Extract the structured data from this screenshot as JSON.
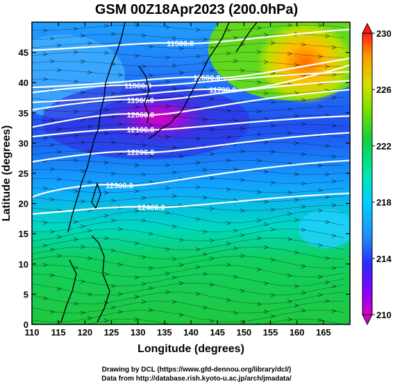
{
  "title": "GSM 00Z18Apr2023 (200.0hPa)",
  "xaxis": {
    "label": "Longitude (degrees)",
    "range": [
      110,
      170
    ],
    "ticks": [
      110,
      115,
      120,
      125,
      130,
      135,
      140,
      145,
      150,
      155,
      160,
      165
    ]
  },
  "yaxis": {
    "label": "Latitude  (degrees)",
    "range": [
      0,
      50
    ],
    "ticks": [
      0,
      5,
      10,
      15,
      20,
      25,
      30,
      35,
      40,
      45
    ]
  },
  "colorbar": {
    "min": 210,
    "max": 230,
    "labels": [
      210,
      214,
      218,
      222,
      226,
      230
    ]
  },
  "contours": [
    {
      "label": "11500.0",
      "lon": 138,
      "lat": 46.5
    },
    {
      "label": "11600.0",
      "lon": 143,
      "lat": 40.8
    },
    {
      "label": "11700.0",
      "lon": 146,
      "lat": 38.8
    },
    {
      "label": "11800.0",
      "lon": 130,
      "lat": 39.5
    },
    {
      "label": "11900.0",
      "lon": 130.5,
      "lat": 37.1
    },
    {
      "label": "12000.0",
      "lon": 130.5,
      "lat": 34.7
    },
    {
      "label": "12100.0",
      "lon": 130.5,
      "lat": 32.2
    },
    {
      "label": "12200.0",
      "lon": 130.5,
      "lat": 28.5
    },
    {
      "label": "12300.0",
      "lon": 126.5,
      "lat": 23.0
    },
    {
      "label": "12400.0",
      "lon": 132.5,
      "lat": 19.4
    }
  ],
  "credits": {
    "line1": "Drawing by DCL (https://www.gfd-dennou.org/library/dcl/)",
    "line2": "Data from http://database.rish.kyoto-u.ac.jp/arch/jmadata/"
  }
}
